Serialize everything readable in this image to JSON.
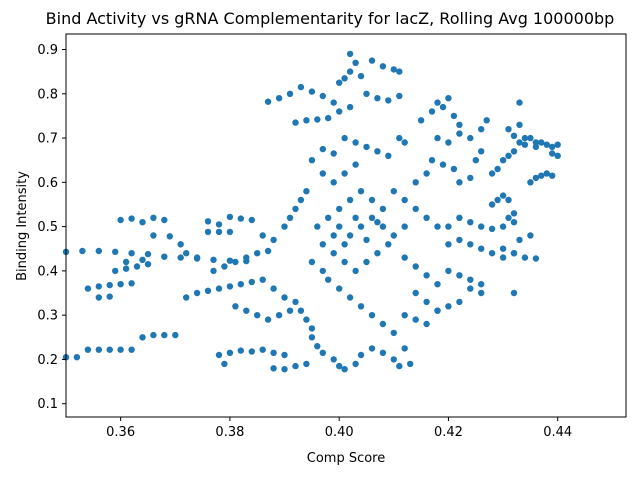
{
  "chart_data": {
    "type": "scatter",
    "title": "Bind Activity vs gRNA Complementarity for lacZ, Rolling Avg 100000bp",
    "xlabel": "Comp Score",
    "ylabel": "Binding Intensity",
    "xlim": [
      0.35,
      0.4525
    ],
    "ylim": [
      0.07,
      0.935
    ],
    "xticks": [
      0.36,
      0.38,
      0.4,
      0.42,
      0.44
    ],
    "xtick_labels": [
      "0.36",
      "0.38",
      "0.40",
      "0.42",
      "0.44"
    ],
    "yticks": [
      0.1,
      0.2,
      0.3,
      0.4,
      0.5,
      0.6,
      0.7,
      0.8,
      0.9
    ],
    "ytick_labels": [
      "0.1",
      "0.2",
      "0.3",
      "0.4",
      "0.5",
      "0.6",
      "0.7",
      "0.8",
      "0.9"
    ],
    "grid": false,
    "legend": "none",
    "marker_color": "#1f77b4",
    "series": [
      {
        "points": [
          [
            0.35,
            0.205
          ],
          [
            0.352,
            0.205
          ],
          [
            0.354,
            0.222
          ],
          [
            0.356,
            0.222
          ],
          [
            0.358,
            0.222
          ],
          [
            0.36,
            0.222
          ],
          [
            0.362,
            0.222
          ],
          [
            0.364,
            0.25
          ],
          [
            0.366,
            0.255
          ],
          [
            0.368,
            0.255
          ],
          [
            0.37,
            0.255
          ],
          [
            0.35,
            0.443
          ],
          [
            0.353,
            0.445
          ],
          [
            0.356,
            0.445
          ],
          [
            0.359,
            0.443
          ],
          [
            0.362,
            0.44
          ],
          [
            0.365,
            0.438
          ],
          [
            0.368,
            0.432
          ],
          [
            0.371,
            0.43
          ],
          [
            0.374,
            0.428
          ],
          [
            0.377,
            0.425
          ],
          [
            0.38,
            0.423
          ],
          [
            0.383,
            0.422
          ],
          [
            0.354,
            0.36
          ],
          [
            0.356,
            0.365
          ],
          [
            0.358,
            0.368
          ],
          [
            0.36,
            0.37
          ],
          [
            0.362,
            0.372
          ],
          [
            0.356,
            0.34
          ],
          [
            0.358,
            0.342
          ],
          [
            0.359,
            0.4
          ],
          [
            0.361,
            0.405
          ],
          [
            0.363,
            0.41
          ],
          [
            0.365,
            0.415
          ],
          [
            0.361,
            0.42
          ],
          [
            0.364,
            0.425
          ],
          [
            0.36,
            0.515
          ],
          [
            0.362,
            0.518
          ],
          [
            0.364,
            0.51
          ],
          [
            0.366,
            0.52
          ],
          [
            0.368,
            0.515
          ],
          [
            0.366,
            0.48
          ],
          [
            0.369,
            0.478
          ],
          [
            0.371,
            0.46
          ],
          [
            0.372,
            0.44
          ],
          [
            0.374,
            0.43
          ],
          [
            0.376,
            0.488
          ],
          [
            0.378,
            0.488
          ],
          [
            0.38,
            0.488
          ],
          [
            0.376,
            0.512
          ],
          [
            0.378,
            0.505
          ],
          [
            0.38,
            0.522
          ],
          [
            0.382,
            0.518
          ],
          [
            0.384,
            0.515
          ],
          [
            0.372,
            0.34
          ],
          [
            0.374,
            0.35
          ],
          [
            0.376,
            0.355
          ],
          [
            0.378,
            0.36
          ],
          [
            0.38,
            0.365
          ],
          [
            0.382,
            0.37
          ],
          [
            0.384,
            0.375
          ],
          [
            0.377,
            0.4
          ],
          [
            0.379,
            0.41
          ],
          [
            0.381,
            0.42
          ],
          [
            0.383,
            0.43
          ],
          [
            0.385,
            0.44
          ],
          [
            0.387,
            0.445
          ],
          [
            0.381,
            0.32
          ],
          [
            0.383,
            0.31
          ],
          [
            0.385,
            0.3
          ],
          [
            0.387,
            0.29
          ],
          [
            0.389,
            0.3
          ],
          [
            0.391,
            0.31
          ],
          [
            0.378,
            0.21
          ],
          [
            0.38,
            0.215
          ],
          [
            0.382,
            0.22
          ],
          [
            0.384,
            0.218
          ],
          [
            0.386,
            0.222
          ],
          [
            0.388,
            0.215
          ],
          [
            0.39,
            0.21
          ],
          [
            0.379,
            0.19
          ],
          [
            0.388,
            0.18
          ],
          [
            0.39,
            0.178
          ],
          [
            0.392,
            0.185
          ],
          [
            0.394,
            0.19
          ],
          [
            0.386,
            0.48
          ],
          [
            0.388,
            0.47
          ],
          [
            0.39,
            0.5
          ],
          [
            0.391,
            0.52
          ],
          [
            0.392,
            0.54
          ],
          [
            0.393,
            0.56
          ],
          [
            0.394,
            0.58
          ],
          [
            0.386,
            0.38
          ],
          [
            0.388,
            0.36
          ],
          [
            0.39,
            0.34
          ],
          [
            0.392,
            0.33
          ],
          [
            0.393,
            0.31
          ],
          [
            0.394,
            0.29
          ],
          [
            0.395,
            0.27
          ],
          [
            0.395,
            0.25
          ],
          [
            0.396,
            0.23
          ],
          [
            0.397,
            0.215
          ],
          [
            0.399,
            0.2
          ],
          [
            0.4,
            0.185
          ],
          [
            0.401,
            0.178
          ],
          [
            0.403,
            0.19
          ],
          [
            0.404,
            0.21
          ],
          [
            0.406,
            0.225
          ],
          [
            0.408,
            0.215
          ],
          [
            0.41,
            0.2
          ],
          [
            0.411,
            0.185
          ],
          [
            0.413,
            0.19
          ],
          [
            0.412,
            0.225
          ],
          [
            0.387,
            0.782
          ],
          [
            0.389,
            0.79
          ],
          [
            0.391,
            0.8
          ],
          [
            0.393,
            0.815
          ],
          [
            0.395,
            0.805
          ],
          [
            0.397,
            0.795
          ],
          [
            0.399,
            0.78
          ],
          [
            0.392,
            0.735
          ],
          [
            0.394,
            0.74
          ],
          [
            0.396,
            0.742
          ],
          [
            0.398,
            0.745
          ],
          [
            0.4,
            0.76
          ],
          [
            0.402,
            0.77
          ],
          [
            0.4,
            0.825
          ],
          [
            0.401,
            0.835
          ],
          [
            0.402,
            0.85
          ],
          [
            0.403,
            0.87
          ],
          [
            0.402,
            0.89
          ],
          [
            0.404,
            0.84
          ],
          [
            0.406,
            0.875
          ],
          [
            0.408,
            0.862
          ],
          [
            0.41,
            0.855
          ],
          [
            0.411,
            0.85
          ],
          [
            0.405,
            0.8
          ],
          [
            0.407,
            0.79
          ],
          [
            0.409,
            0.785
          ],
          [
            0.411,
            0.795
          ],
          [
            0.401,
            0.7
          ],
          [
            0.403,
            0.69
          ],
          [
            0.405,
            0.68
          ],
          [
            0.407,
            0.67
          ],
          [
            0.409,
            0.66
          ],
          [
            0.411,
            0.7
          ],
          [
            0.412,
            0.69
          ],
          [
            0.397,
            0.675
          ],
          [
            0.399,
            0.665
          ],
          [
            0.395,
            0.65
          ],
          [
            0.397,
            0.62
          ],
          [
            0.399,
            0.6
          ],
          [
            0.401,
            0.62
          ],
          [
            0.403,
            0.64
          ],
          [
            0.396,
            0.5
          ],
          [
            0.398,
            0.52
          ],
          [
            0.4,
            0.54
          ],
          [
            0.402,
            0.56
          ],
          [
            0.404,
            0.58
          ],
          [
            0.406,
            0.56
          ],
          [
            0.408,
            0.54
          ],
          [
            0.397,
            0.46
          ],
          [
            0.399,
            0.44
          ],
          [
            0.401,
            0.42
          ],
          [
            0.403,
            0.4
          ],
          [
            0.405,
            0.42
          ],
          [
            0.407,
            0.44
          ],
          [
            0.409,
            0.46
          ],
          [
            0.398,
            0.38
          ],
          [
            0.4,
            0.36
          ],
          [
            0.402,
            0.34
          ],
          [
            0.404,
            0.32
          ],
          [
            0.406,
            0.3
          ],
          [
            0.408,
            0.28
          ],
          [
            0.41,
            0.26
          ],
          [
            0.4,
            0.5
          ],
          [
            0.402,
            0.48
          ],
          [
            0.404,
            0.5
          ],
          [
            0.406,
            0.52
          ],
          [
            0.408,
            0.5
          ],
          [
            0.41,
            0.48
          ],
          [
            0.412,
            0.5
          ],
          [
            0.395,
            0.42
          ],
          [
            0.397,
            0.4
          ],
          [
            0.399,
            0.48
          ],
          [
            0.401,
            0.46
          ],
          [
            0.403,
            0.52
          ],
          [
            0.405,
            0.47
          ],
          [
            0.407,
            0.51
          ],
          [
            0.41,
            0.58
          ],
          [
            0.412,
            0.56
          ],
          [
            0.414,
            0.54
          ],
          [
            0.416,
            0.52
          ],
          [
            0.418,
            0.5
          ],
          [
            0.414,
            0.6
          ],
          [
            0.416,
            0.62
          ],
          [
            0.412,
            0.43
          ],
          [
            0.414,
            0.41
          ],
          [
            0.416,
            0.39
          ],
          [
            0.418,
            0.37
          ],
          [
            0.414,
            0.35
          ],
          [
            0.416,
            0.33
          ],
          [
            0.418,
            0.31
          ],
          [
            0.412,
            0.3
          ],
          [
            0.414,
            0.29
          ],
          [
            0.416,
            0.28
          ],
          [
            0.418,
            0.31
          ],
          [
            0.42,
            0.32
          ],
          [
            0.422,
            0.33
          ],
          [
            0.415,
            0.74
          ],
          [
            0.417,
            0.76
          ],
          [
            0.418,
            0.78
          ],
          [
            0.42,
            0.79
          ],
          [
            0.419,
            0.77
          ],
          [
            0.421,
            0.75
          ],
          [
            0.422,
            0.73
          ],
          [
            0.418,
            0.7
          ],
          [
            0.42,
            0.69
          ],
          [
            0.422,
            0.71
          ],
          [
            0.417,
            0.65
          ],
          [
            0.419,
            0.64
          ],
          [
            0.421,
            0.63
          ],
          [
            0.42,
            0.46
          ],
          [
            0.422,
            0.47
          ],
          [
            0.424,
            0.46
          ],
          [
            0.426,
            0.45
          ],
          [
            0.428,
            0.44
          ],
          [
            0.43,
            0.43
          ],
          [
            0.432,
            0.44
          ],
          [
            0.42,
            0.5
          ],
          [
            0.422,
            0.52
          ],
          [
            0.424,
            0.51
          ],
          [
            0.426,
            0.5
          ],
          [
            0.428,
            0.495
          ],
          [
            0.43,
            0.5
          ],
          [
            0.432,
            0.51
          ],
          [
            0.42,
            0.4
          ],
          [
            0.422,
            0.39
          ],
          [
            0.424,
            0.38
          ],
          [
            0.426,
            0.37
          ],
          [
            0.424,
            0.36
          ],
          [
            0.426,
            0.35
          ],
          [
            0.422,
            0.6
          ],
          [
            0.424,
            0.61
          ],
          [
            0.425,
            0.65
          ],
          [
            0.426,
            0.67
          ],
          [
            0.424,
            0.7
          ],
          [
            0.426,
            0.72
          ],
          [
            0.427,
            0.74
          ],
          [
            0.428,
            0.62
          ],
          [
            0.429,
            0.63
          ],
          [
            0.43,
            0.65
          ],
          [
            0.431,
            0.66
          ],
          [
            0.432,
            0.67
          ],
          [
            0.433,
            0.69
          ],
          [
            0.434,
            0.7
          ],
          [
            0.431,
            0.72
          ],
          [
            0.432,
            0.705
          ],
          [
            0.433,
            0.73
          ],
          [
            0.434,
            0.685
          ],
          [
            0.435,
            0.7
          ],
          [
            0.436,
            0.68
          ],
          [
            0.433,
            0.78
          ],
          [
            0.435,
            0.6
          ],
          [
            0.436,
            0.61
          ],
          [
            0.437,
            0.615
          ],
          [
            0.438,
            0.62
          ],
          [
            0.439,
            0.615
          ],
          [
            0.436,
            0.69
          ],
          [
            0.437,
            0.69
          ],
          [
            0.438,
            0.685
          ],
          [
            0.439,
            0.68
          ],
          [
            0.44,
            0.685
          ],
          [
            0.44,
            0.66
          ],
          [
            0.439,
            0.665
          ],
          [
            0.43,
            0.45
          ],
          [
            0.432,
            0.44
          ],
          [
            0.434,
            0.43
          ],
          [
            0.436,
            0.428
          ],
          [
            0.433,
            0.47
          ],
          [
            0.435,
            0.48
          ],
          [
            0.432,
            0.35
          ],
          [
            0.431,
            0.52
          ],
          [
            0.432,
            0.53
          ],
          [
            0.428,
            0.55
          ],
          [
            0.429,
            0.56
          ],
          [
            0.43,
            0.57
          ],
          [
            0.431,
            0.56
          ]
        ]
      }
    ]
  }
}
